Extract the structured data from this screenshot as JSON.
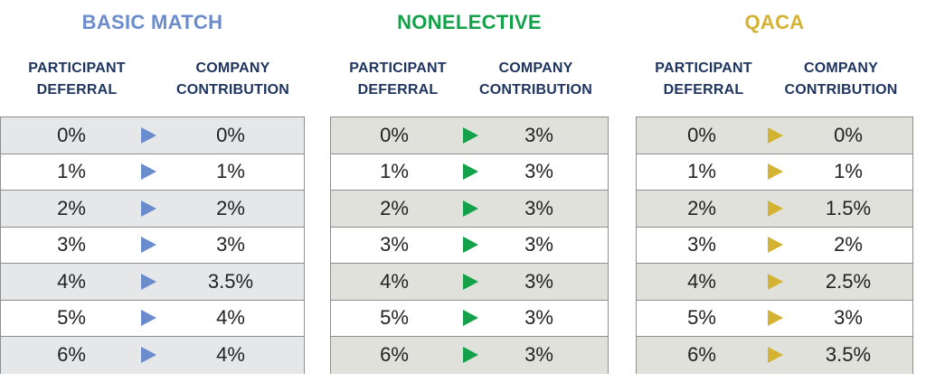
{
  "panels": [
    {
      "title": "BASIC MATCH",
      "title_color": "#6b8ccc",
      "arrow_color": "#6b8ccc",
      "stripe_color": "#e6e7e9",
      "headers": {
        "left": [
          "PARTICIPANT",
          "DEFERRAL"
        ],
        "right": [
          "COMPANY",
          "CONTRIBUTION"
        ]
      },
      "rows": [
        {
          "deferral": "0%",
          "contribution": "0%"
        },
        {
          "deferral": "1%",
          "contribution": "1%"
        },
        {
          "deferral": "2%",
          "contribution": "2%"
        },
        {
          "deferral": "3%",
          "contribution": "3%"
        },
        {
          "deferral": "4%",
          "contribution": "3.5%"
        },
        {
          "deferral": "5%",
          "contribution": "4%"
        },
        {
          "deferral": "6%",
          "contribution": "4%"
        }
      ]
    },
    {
      "title": "NONELECTIVE",
      "title_color": "#13a24a",
      "arrow_color": "#13a24a",
      "stripe_color": "#dfe1da",
      "headers": {
        "left": [
          "PARTICIPANT",
          "DEFERRAL"
        ],
        "right": [
          "COMPANY",
          "CONTRIBUTION"
        ]
      },
      "rows": [
        {
          "deferral": "0%",
          "contribution": "3%"
        },
        {
          "deferral": "1%",
          "contribution": "3%"
        },
        {
          "deferral": "2%",
          "contribution": "3%"
        },
        {
          "deferral": "3%",
          "contribution": "3%"
        },
        {
          "deferral": "4%",
          "contribution": "3%"
        },
        {
          "deferral": "5%",
          "contribution": "3%"
        },
        {
          "deferral": "6%",
          "contribution": "3%"
        }
      ]
    },
    {
      "title": "QACA",
      "title_color": "#d4b232",
      "arrow_color": "#d4b232",
      "stripe_color": "#dfe1da",
      "headers": {
        "left": [
          "PARTICIPANT",
          "DEFERRAL"
        ],
        "right": [
          "COMPANY",
          "CONTRIBUTION"
        ]
      },
      "rows": [
        {
          "deferral": "0%",
          "contribution": "0%"
        },
        {
          "deferral": "1%",
          "contribution": "1%"
        },
        {
          "deferral": "2%",
          "contribution": "1.5%"
        },
        {
          "deferral": "3%",
          "contribution": "2%"
        },
        {
          "deferral": "4%",
          "contribution": "2.5%"
        },
        {
          "deferral": "5%",
          "contribution": "3%"
        },
        {
          "deferral": "6%",
          "contribution": "3.5%"
        }
      ]
    }
  ]
}
